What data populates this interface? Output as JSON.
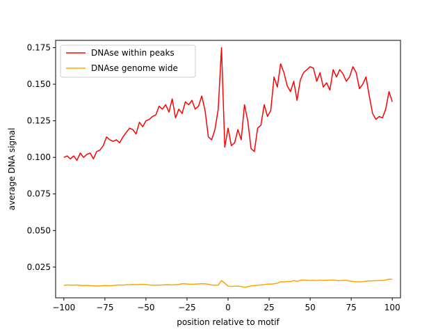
{
  "chart_data": {
    "type": "line",
    "title": "",
    "xlabel": "position relative to motif",
    "ylabel": "average DNA signal",
    "xlim": [
      -105,
      105
    ],
    "ylim": [
      0.004,
      0.18
    ],
    "xticks": [
      -100,
      -75,
      -50,
      -25,
      0,
      25,
      50,
      75,
      100
    ],
    "yticks": [
      0.025,
      0.05,
      0.075,
      0.1,
      0.125,
      0.15,
      0.175
    ],
    "xtick_labels": [
      "−100",
      "−75",
      "−50",
      "−25",
      "0",
      "25",
      "50",
      "75",
      "100"
    ],
    "ytick_labels": [
      "0.025",
      "0.050",
      "0.075",
      "0.100",
      "0.125",
      "0.150",
      "0.175"
    ],
    "grid": false,
    "legend_position": "top-left",
    "series": [
      {
        "name": "DNAse within peaks",
        "color": "#ff0000",
        "x": [
          -100,
          -98,
          -96,
          -94,
          -92,
          -90,
          -88,
          -86,
          -84,
          -82,
          -80,
          -78,
          -76,
          -74,
          -72,
          -70,
          -68,
          -66,
          -64,
          -62,
          -60,
          -58,
          -56,
          -54,
          -52,
          -50,
          -48,
          -46,
          -44,
          -42,
          -40,
          -38,
          -36,
          -34,
          -32,
          -30,
          -28,
          -26,
          -24,
          -22,
          -20,
          -18,
          -16,
          -14,
          -12,
          -10,
          -8,
          -6,
          -4,
          -2,
          0,
          2,
          4,
          6,
          8,
          10,
          12,
          14,
          16,
          18,
          20,
          22,
          24,
          26,
          28,
          30,
          32,
          34,
          36,
          38,
          40,
          42,
          44,
          46,
          48,
          50,
          52,
          54,
          56,
          58,
          60,
          62,
          64,
          66,
          68,
          70,
          72,
          74,
          76,
          78,
          80,
          82,
          84,
          86,
          88,
          90,
          92,
          94,
          96,
          98,
          100
        ],
        "values": [
          0.1,
          0.101,
          0.099,
          0.101,
          0.098,
          0.103,
          0.1,
          0.102,
          0.103,
          0.099,
          0.104,
          0.105,
          0.108,
          0.114,
          0.112,
          0.111,
          0.112,
          0.11,
          0.114,
          0.117,
          0.12,
          0.119,
          0.116,
          0.124,
          0.121,
          0.125,
          0.126,
          0.128,
          0.129,
          0.135,
          0.133,
          0.136,
          0.131,
          0.14,
          0.127,
          0.133,
          0.13,
          0.138,
          0.136,
          0.139,
          0.133,
          0.135,
          0.142,
          0.132,
          0.114,
          0.112,
          0.119,
          0.133,
          0.175,
          0.107,
          0.12,
          0.108,
          0.11,
          0.119,
          0.112,
          0.136,
          0.125,
          0.106,
          0.104,
          0.12,
          0.122,
          0.136,
          0.128,
          0.132,
          0.155,
          0.148,
          0.164,
          0.158,
          0.149,
          0.145,
          0.152,
          0.139,
          0.153,
          0.158,
          0.16,
          0.162,
          0.161,
          0.152,
          0.158,
          0.148,
          0.151,
          0.146,
          0.16,
          0.155,
          0.16,
          0.157,
          0.152,
          0.155,
          0.162,
          0.158,
          0.147,
          0.15,
          0.155,
          0.142,
          0.13,
          0.126,
          0.128,
          0.127,
          0.133,
          0.145,
          0.138
        ]
      },
      {
        "name": "DNAse genome wide",
        "color": "#ffa500",
        "x": [
          -100,
          -98,
          -96,
          -94,
          -92,
          -90,
          -88,
          -86,
          -84,
          -82,
          -80,
          -78,
          -76,
          -74,
          -72,
          -70,
          -68,
          -66,
          -64,
          -62,
          -60,
          -58,
          -56,
          -54,
          -52,
          -50,
          -48,
          -46,
          -44,
          -42,
          -40,
          -38,
          -36,
          -34,
          -32,
          -30,
          -28,
          -26,
          -24,
          -22,
          -20,
          -18,
          -16,
          -14,
          -12,
          -10,
          -8,
          -6,
          -4,
          -2,
          0,
          2,
          4,
          6,
          8,
          10,
          12,
          14,
          16,
          18,
          20,
          22,
          24,
          26,
          28,
          30,
          32,
          34,
          36,
          38,
          40,
          42,
          44,
          46,
          48,
          50,
          52,
          54,
          56,
          58,
          60,
          62,
          64,
          66,
          68,
          70,
          72,
          74,
          76,
          78,
          80,
          82,
          84,
          86,
          88,
          90,
          92,
          94,
          96,
          98,
          100
        ],
        "values": [
          0.0125,
          0.0128,
          0.0127,
          0.0126,
          0.0128,
          0.0125,
          0.0124,
          0.0125,
          0.0123,
          0.0122,
          0.0121,
          0.0122,
          0.0123,
          0.0124,
          0.0123,
          0.0124,
          0.0127,
          0.0128,
          0.0127,
          0.0129,
          0.013,
          0.0131,
          0.013,
          0.0131,
          0.0132,
          0.0131,
          0.0128,
          0.0127,
          0.0126,
          0.0127,
          0.0128,
          0.0129,
          0.013,
          0.0128,
          0.013,
          0.0131,
          0.0137,
          0.0136,
          0.0134,
          0.0133,
          0.0134,
          0.0135,
          0.0137,
          0.0136,
          0.0133,
          0.0128,
          0.0126,
          0.0127,
          0.0158,
          0.014,
          0.012,
          0.0118,
          0.0119,
          0.012,
          0.0117,
          0.0112,
          0.0116,
          0.0122,
          0.0124,
          0.0126,
          0.0128,
          0.013,
          0.0134,
          0.0134,
          0.0136,
          0.014,
          0.015,
          0.0148,
          0.0152,
          0.015,
          0.0158,
          0.0152,
          0.016,
          0.0162,
          0.016,
          0.0158,
          0.016,
          0.0158,
          0.0161,
          0.0159,
          0.016,
          0.0161,
          0.0162,
          0.0158,
          0.0157,
          0.0159,
          0.016,
          0.0155,
          0.0152,
          0.015,
          0.0149,
          0.015,
          0.0154,
          0.0155,
          0.0156,
          0.0157,
          0.0158,
          0.0159,
          0.0162,
          0.0168,
          0.0166
        ]
      }
    ]
  }
}
